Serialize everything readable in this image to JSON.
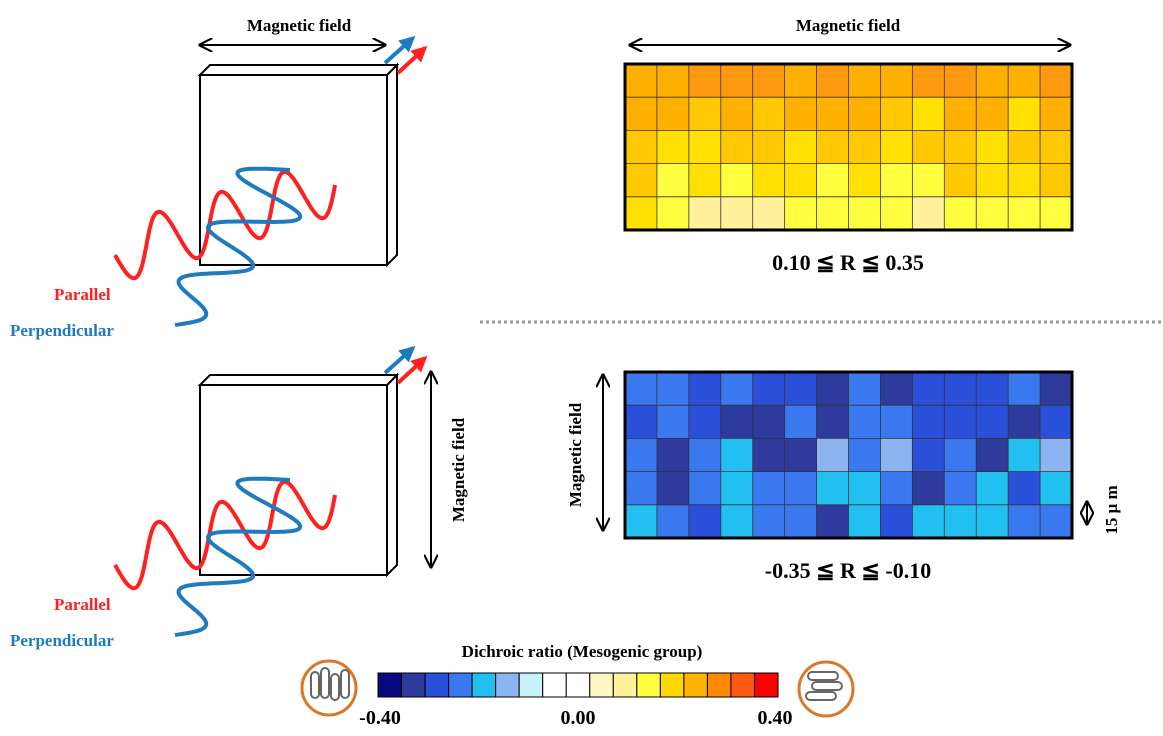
{
  "top_diagram": {
    "field_label": "Magnetic field",
    "parallel": "Parallel",
    "perpendicular": "Perpendicular"
  },
  "top_map": {
    "field_label": "Magnetic field",
    "range": "0.10 ≦ R ≦ 0.35"
  },
  "bottom_diagram": {
    "field_label": "Magnetic field",
    "parallel": "Parallel",
    "perpendicular": "Perpendicular"
  },
  "bottom_map": {
    "field_label": "Magnetic field",
    "range": "-0.35 ≦ R ≦ -0.10",
    "scale": "15 μ m"
  },
  "colorbar": {
    "title": "Dichroic ratio (Mesogenic group)",
    "labels": [
      "-0.40",
      "0.00",
      "0.40"
    ],
    "colors": [
      "#0a0a80",
      "#2e3a9c",
      "#2a4fd8",
      "#3a78f0",
      "#22c0f0",
      "#8cb4f0",
      "#c8f2f8",
      "#ffffff",
      "#ffffff",
      "#fff6c4",
      "#fff29a",
      "#ffff40",
      "#ffd800",
      "#ffb400",
      "#ff8a00",
      "#ff5a10",
      "#ff0000"
    ]
  }
}
